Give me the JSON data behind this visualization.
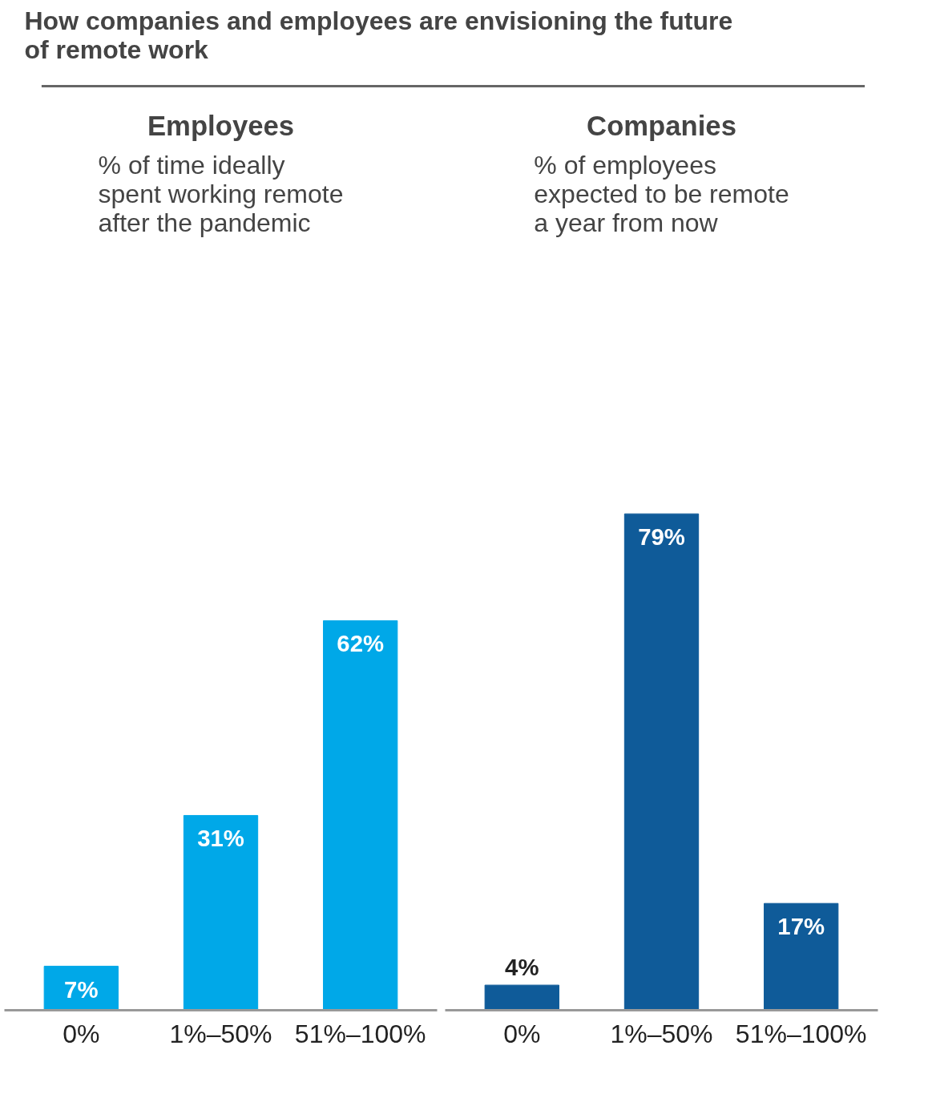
{
  "chart_data": [
    {
      "type": "other",
      "title": "How companies and employees are envisioning the future of remote work"
    },
    {
      "type": "bar",
      "title": "Employees",
      "subtitle": "% of time ideally spent working remote after the pandemic",
      "categories": [
        "0%",
        "1%–50%",
        "51%–100%"
      ],
      "series": [
        {
          "color": "#00a8e8",
          "values": [
            7,
            31,
            62
          ],
          "value_labels": [
            "7%",
            "31%",
            "62%"
          ]
        }
      ],
      "grid": false
    },
    {
      "type": "bar",
      "title": "Companies",
      "subtitle": "% of employees expected to be remote a year from now",
      "categories": [
        "0%",
        "1%–50%",
        "51%–100%"
      ],
      "series": [
        {
          "color": "#0f5b99",
          "values": [
            4,
            79,
            17
          ],
          "value_labels": [
            "4%",
            "79%",
            "17%"
          ]
        }
      ],
      "grid": false
    }
  ]
}
